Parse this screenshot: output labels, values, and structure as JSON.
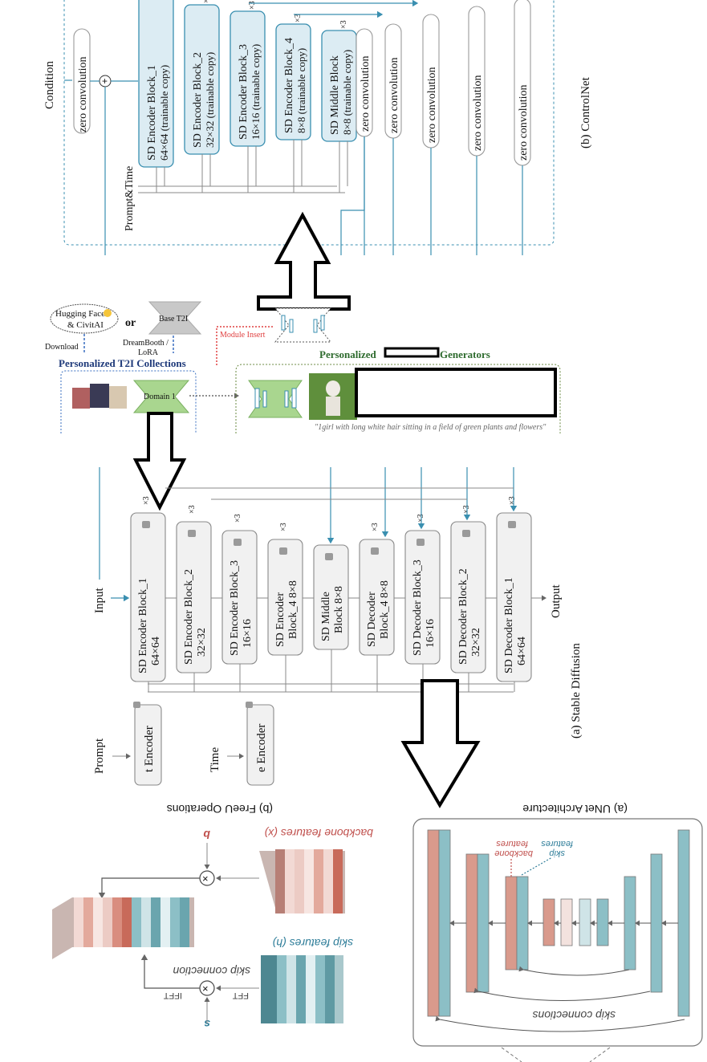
{
  "controlnet": {
    "condition": "Condition",
    "zero_conv": "zero convolution",
    "prompt_time": "Prompt&Time",
    "caption": "(b) ControlNet",
    "blocks": [
      {
        "name": "SD Encoder Block_1",
        "sub": "64×64 (trainable copy)"
      },
      {
        "name": "SD Encoder Block_2",
        "sub": "32×32 (trainable copy)"
      },
      {
        "name": "SD Encoder Block_3",
        "sub": "16×16 (trainable copy)"
      },
      {
        "name": "SD Encoder Block_4",
        "sub": "8×8 (trainable copy)"
      },
      {
        "name": "SD Middle Block",
        "sub": "8×8 (trainable copy)"
      }
    ],
    "mult": "×3"
  },
  "animatediff": {
    "hf": "Hugging Face",
    "civit": "& CivitAI",
    "or": "or",
    "base": "Base T2I",
    "download": "Download",
    "dreambooth": "DreamBooth /",
    "lora": "LoRA",
    "collections": "Personalized T2I Collections",
    "domain": "Domain 1",
    "module_insert": "Module Insert",
    "gen_left": "Personalized",
    "gen_right": "Generators",
    "quote": "\"1girl with long white hair sitting in a field of green plants and flowers\""
  },
  "stable_diffusion": {
    "input": "Input",
    "output": "Output",
    "prompt": "Prompt",
    "time": "Time",
    "text_encoder": "t Encoder",
    "time_encoder": "e Encoder",
    "caption": "(a) Stable Diffusion",
    "mult": "×3",
    "blocks": [
      {
        "l1": "SD Encoder Block_1",
        "l2": "64×64"
      },
      {
        "l1": "SD Encoder Block_2",
        "l2": "32×32"
      },
      {
        "l1": "SD Encoder Block_3",
        "l2": "16×16"
      },
      {
        "l1": "SD Encoder",
        "l2": "Block_4 8×8"
      },
      {
        "l1": "SD Middle",
        "l2": "Block 8×8"
      },
      {
        "l1": "SD Decoder",
        "l2": "Block_4 8×8"
      },
      {
        "l1": "SD Decoder Block_3",
        "l2": "16×16"
      },
      {
        "l1": "SD Decoder Block_2",
        "l2": "32×32"
      },
      {
        "l1": "SD Decoder Block_1",
        "l2": "64×64"
      }
    ]
  },
  "freeu": {
    "caption": "(b) FreeU Operations",
    "backbone": "backbone features (x)",
    "skip": "skip features (h)",
    "b": "b",
    "s": "s",
    "fft": "FFT",
    "ifft": "IFFT",
    "skip_conn": "skip connection"
  },
  "unet": {
    "caption": "(a) UNet Architecture",
    "backbone_l1": "backbone",
    "backbone_l2": "features",
    "skip_l1": "skip",
    "skip_l2": "features",
    "skip_conns": "skip connections"
  },
  "colors": {
    "teal": "#3a8fb0",
    "block_fill": "#dcecf3",
    "salmon": "#d99a8c",
    "teal_bar": "#8cbfc6",
    "green": "#9fd08a",
    "red_dotted": "#e04040"
  }
}
